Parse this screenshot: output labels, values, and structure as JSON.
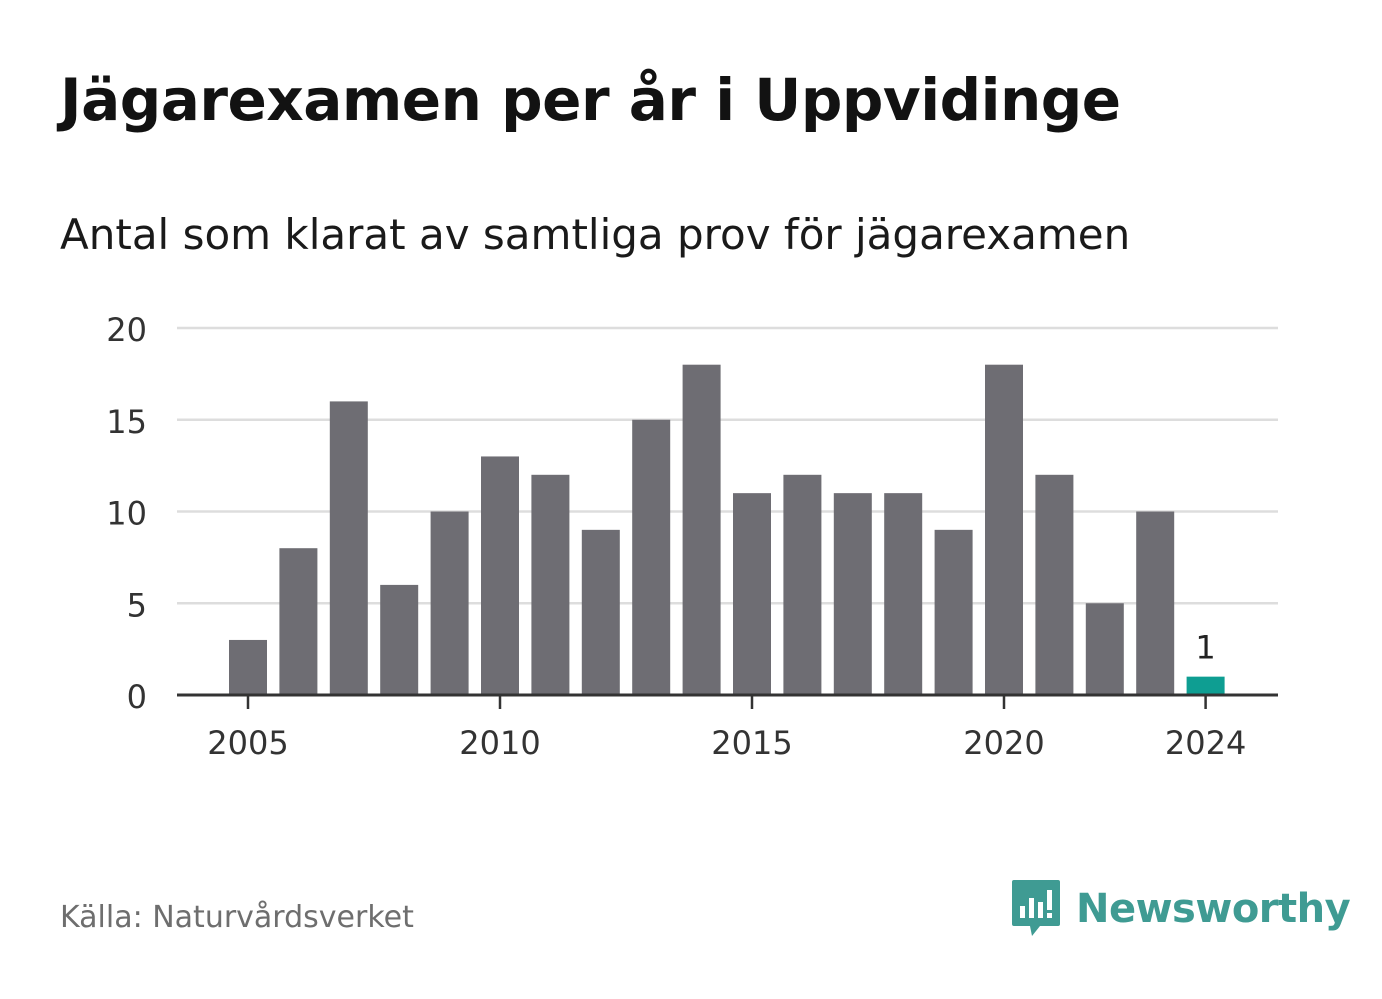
{
  "title": "Jägarexamen per år i Uppvidinge",
  "subtitle": "Antal som klarat av samtliga prov för jägarexamen",
  "source": "Källa: Naturvårdsverket",
  "brand": "Newsworthy",
  "colors": {
    "bar": "#6e6d73",
    "highlight": "#0e9e92",
    "grid": "#dddddd",
    "axis": "#333333",
    "brand": "#3f9b93"
  },
  "chart_data": {
    "type": "bar",
    "x": [
      2005,
      2006,
      2007,
      2008,
      2009,
      2010,
      2011,
      2012,
      2013,
      2014,
      2015,
      2016,
      2017,
      2018,
      2019,
      2020,
      2021,
      2022,
      2023,
      2024
    ],
    "values": [
      3,
      8,
      16,
      6,
      10,
      13,
      12,
      9,
      15,
      18,
      11,
      12,
      11,
      11,
      9,
      18,
      12,
      5,
      10,
      1
    ],
    "x_ticks": [
      "2005",
      "2010",
      "2015",
      "2020",
      "2024"
    ],
    "y_ticks": [
      0,
      5,
      10,
      15,
      20
    ],
    "ylim": [
      0,
      20
    ],
    "highlight": {
      "x": 2024,
      "label": "1"
    },
    "grid": true
  }
}
